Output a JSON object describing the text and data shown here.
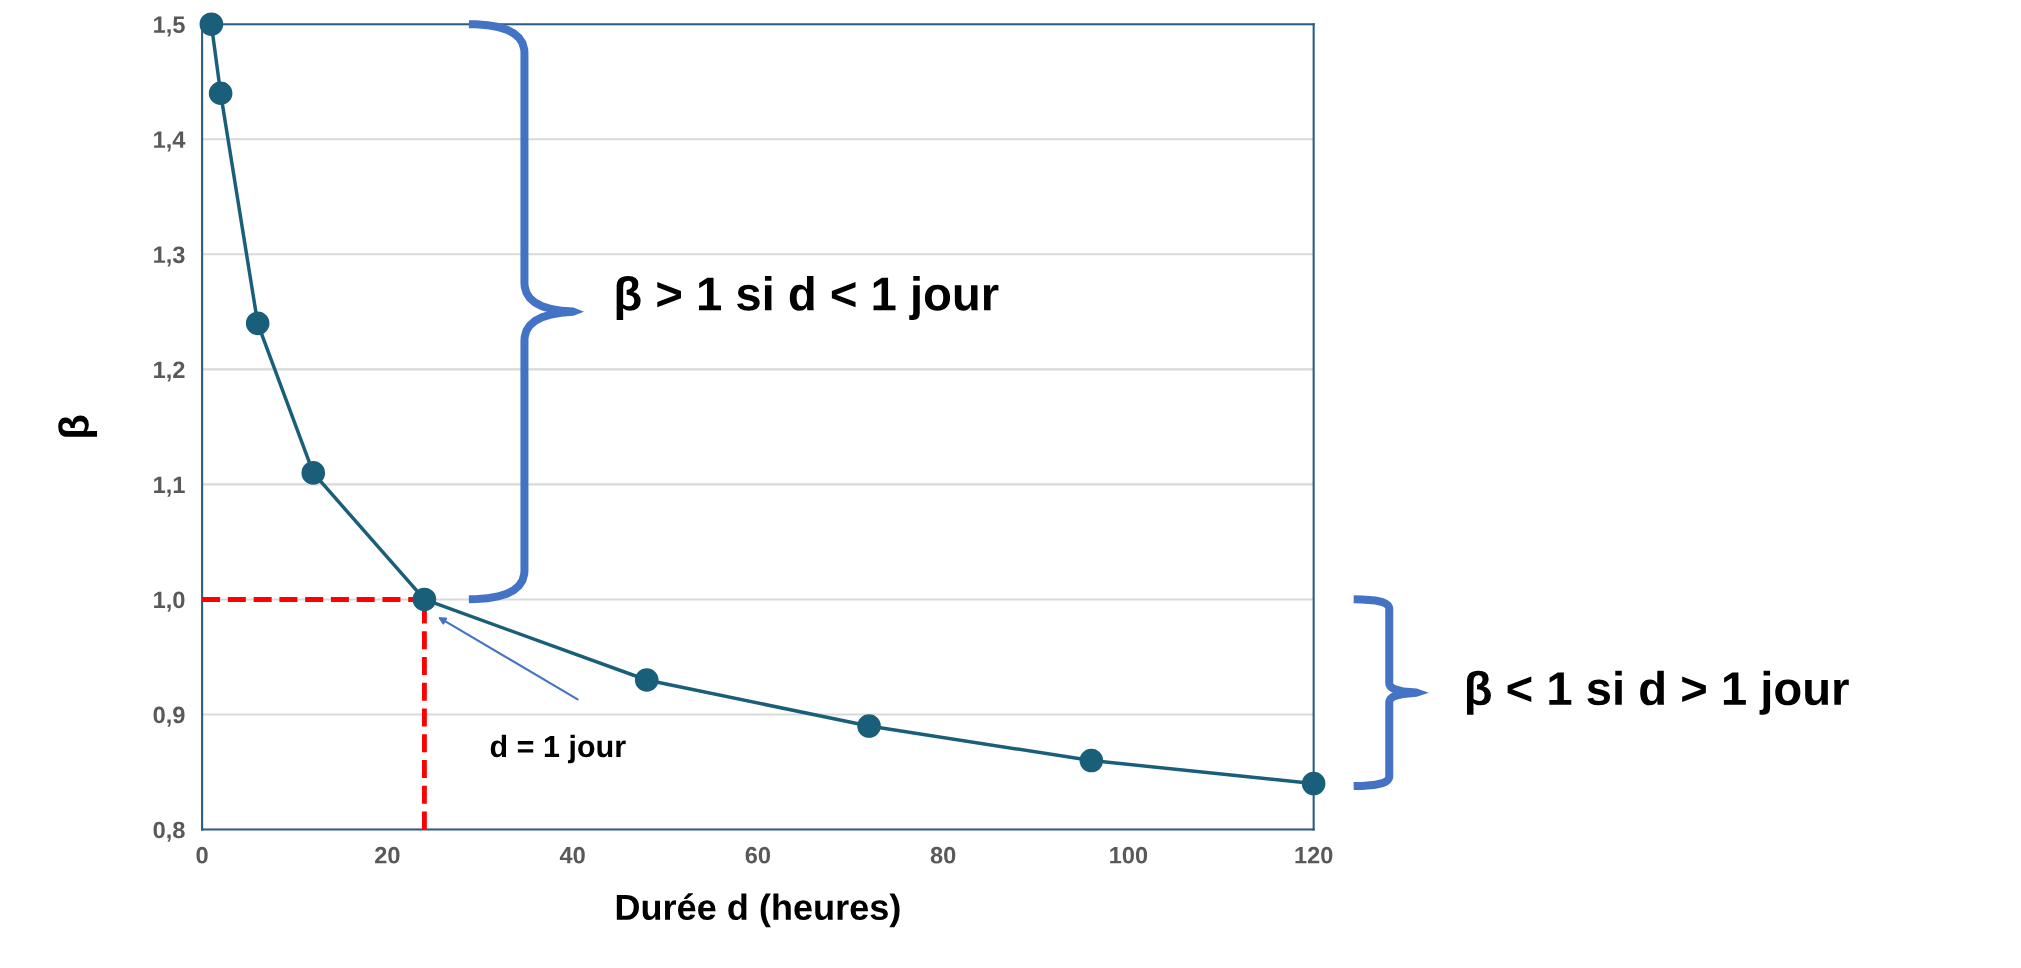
{
  "chart_data": {
    "type": "line",
    "xlabel": "Durée d (heures)",
    "ylabel": "β",
    "x": [
      1,
      2,
      6,
      12,
      24,
      48,
      72,
      96,
      120
    ],
    "series": [
      {
        "color": "#1a5f7a",
        "values": [
          1.5,
          1.44,
          1.24,
          1.11,
          1.0,
          0.93,
          0.89,
          0.86,
          0.84
        ]
      }
    ],
    "marker": "circle",
    "line_style": "solid",
    "grid": "y",
    "xlim": [
      0,
      120
    ],
    "xticks": [
      0,
      20,
      40,
      60,
      80,
      100,
      120
    ],
    "ylim": [
      0.8,
      1.5
    ],
    "yticks": [
      {
        "value": 0.8,
        "label": "0,8"
      },
      {
        "value": 0.9,
        "label": "0,9"
      },
      {
        "value": 1.0,
        "label": "1,0"
      },
      {
        "value": 1.1,
        "label": "1,1"
      },
      {
        "value": 1.2,
        "label": "1,2"
      },
      {
        "value": 1.3,
        "label": "1,3"
      },
      {
        "value": 1.4,
        "label": "1,4"
      },
      {
        "value": 1.5,
        "label": "1,5"
      }
    ],
    "ref_lines": [
      {
        "axis": "y",
        "value": 1.0,
        "color": "#ff0000",
        "line_style": "dashed"
      },
      {
        "axis": "x",
        "value": 24,
        "color": "#ff0000",
        "line_style": "dashed"
      }
    ],
    "annotations": [
      "β > 1 si d < 1 jour",
      "β < 1 si d > 1 jour",
      "d = 1 jour"
    ]
  }
}
